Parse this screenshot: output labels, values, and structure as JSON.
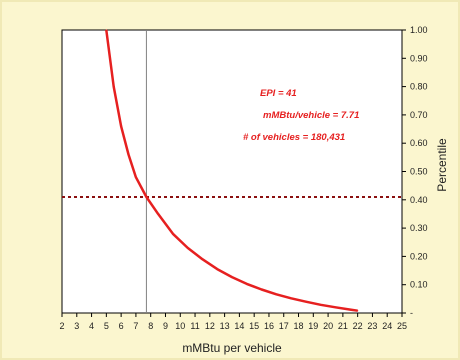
{
  "colors": {
    "background": "#fbf6cf",
    "plot_background": "#ffffff",
    "curve": "#e62020",
    "reference_line": "#8b1010",
    "marker_line": "#808080",
    "annotation": "#e62020"
  },
  "chart_data": {
    "type": "line",
    "title": "",
    "xlabel": "mMBtu per vehicle",
    "ylabel": "Percentile",
    "xlim": [
      2,
      25
    ],
    "ylim": [
      0,
      1
    ],
    "x_ticks": [
      "2",
      "3",
      "4",
      "5",
      "6",
      "7",
      "8",
      "9",
      "10",
      "11",
      "12",
      "13",
      "14",
      "15",
      "16",
      "17",
      "18",
      "19",
      "20",
      "21",
      "22",
      "23",
      "24",
      "25"
    ],
    "y_ticks": [
      "-",
      "0.10",
      "0.20",
      "0.30",
      "0.40",
      "0.50",
      "0.60",
      "0.70",
      "0.80",
      "0.90",
      "1.00"
    ],
    "y_axis_side": "right",
    "grid": false,
    "series": [
      {
        "x": [
          5.0,
          5.5,
          6.0,
          6.5,
          7.0,
          7.71,
          8.5,
          9.5,
          10.5,
          11.5,
          12.5,
          13.5,
          14.5,
          15.5,
          16.5,
          17.5,
          18.5,
          19.5,
          20.5,
          21.5,
          22.0
        ],
        "y": [
          1.0,
          0.8,
          0.66,
          0.56,
          0.48,
          0.41,
          0.35,
          0.28,
          0.23,
          0.19,
          0.155,
          0.127,
          0.103,
          0.083,
          0.066,
          0.052,
          0.04,
          0.029,
          0.02,
          0.012,
          0.008
        ]
      }
    ],
    "reference_lines": {
      "horizontal_y": 0.41,
      "vertical_x": 7.71
    },
    "annotations": [
      "EPI = 41",
      "mMBtu/vehicle = 7.71",
      "# of vehicles = 180,431"
    ]
  }
}
